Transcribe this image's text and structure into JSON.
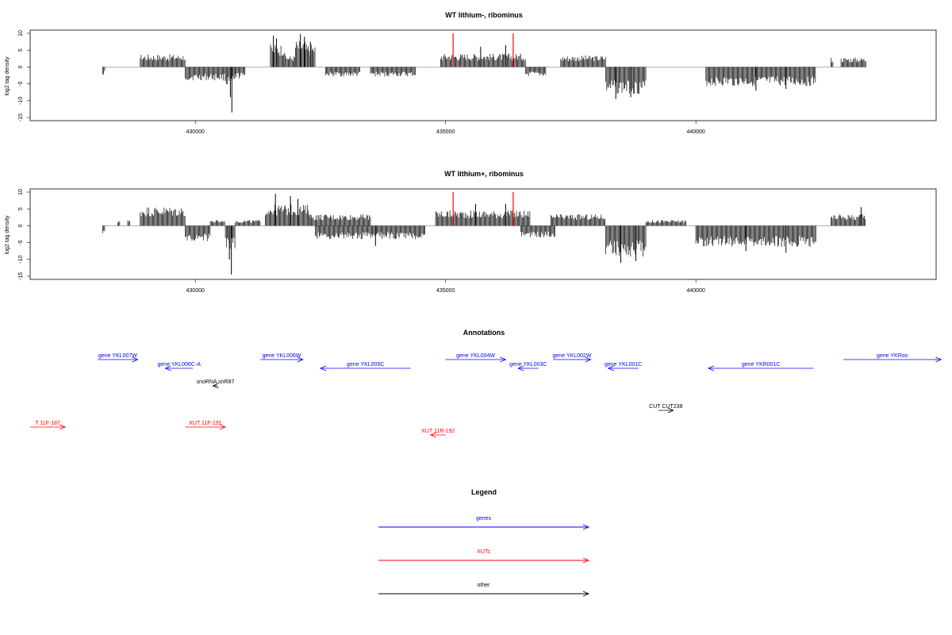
{
  "chart_data": [
    {
      "type": "bar",
      "title": "WT lithium-, ribominus",
      "ylabel": "log2 tag density",
      "xlabel": "",
      "xlim": [
        426700,
        444800
      ],
      "ylim": [
        -15,
        10
      ],
      "xticks": [
        "430000",
        "435000",
        "440000"
      ],
      "yticks": [
        "10",
        "5",
        "0",
        "-5",
        "-10",
        "-15"
      ],
      "marker_lines": [
        435150,
        436350
      ],
      "marker_color": "#ff0000",
      "bar_color": "#000000",
      "baseline_color": "#999999",
      "segments": [
        {
          "start": 428150,
          "end": 428200,
          "value": -2,
          "spikes": []
        },
        {
          "start": 428900,
          "end": 429800,
          "value": 3.3,
          "spikes": []
        },
        {
          "start": 429800,
          "end": 430600,
          "value": -3.5,
          "spikes": []
        },
        {
          "start": 430600,
          "end": 430800,
          "value": -5,
          "spikes": [
            [
              430730,
              -13.5
            ],
            [
              430700,
              -9
            ]
          ]
        },
        {
          "start": 430800,
          "end": 431000,
          "value": -3,
          "spikes": []
        },
        {
          "start": 431500,
          "end": 431800,
          "value": 6,
          "spikes": [
            [
              431560,
              9.3
            ],
            [
              431620,
              8.5
            ]
          ]
        },
        {
          "start": 431800,
          "end": 432000,
          "value": 3,
          "spikes": []
        },
        {
          "start": 432000,
          "end": 432200,
          "value": 7,
          "spikes": [
            [
              432100,
              9.8
            ],
            [
              432180,
              9
            ]
          ]
        },
        {
          "start": 432200,
          "end": 432400,
          "value": 6,
          "spikes": [
            [
              432300,
              7.5
            ]
          ]
        },
        {
          "start": 432600,
          "end": 433300,
          "value": -2.5,
          "spikes": []
        },
        {
          "start": 433500,
          "end": 434400,
          "value": -2.5,
          "spikes": []
        },
        {
          "start": 434900,
          "end": 436600,
          "value": 3.5,
          "spikes": [
            [
              435700,
              6
            ],
            [
              436200,
              6.5
            ]
          ]
        },
        {
          "start": 436600,
          "end": 437000,
          "value": -2.5,
          "spikes": []
        },
        {
          "start": 437300,
          "end": 438200,
          "value": 3,
          "spikes": []
        },
        {
          "start": 438200,
          "end": 439000,
          "value": -7,
          "spikes": [
            [
              438400,
              -9.5
            ],
            [
              438700,
              -9
            ]
          ]
        },
        {
          "start": 440200,
          "end": 442400,
          "value": -5,
          "spikes": [
            [
              441200,
              -7
            ],
            [
              441800,
              -6.5
            ]
          ]
        },
        {
          "start": 442700,
          "end": 442750,
          "value": 2.5,
          "spikes": []
        },
        {
          "start": 442900,
          "end": 443400,
          "value": 2.5,
          "spikes": []
        }
      ]
    },
    {
      "type": "bar",
      "title": "WT lithium+, ribominus",
      "ylabel": "log2 tag density",
      "xlabel": "",
      "xlim": [
        426700,
        444800
      ],
      "ylim": [
        -15,
        10
      ],
      "xticks": [
        "430000",
        "435000",
        "440000"
      ],
      "yticks": [
        "10",
        "5",
        "0",
        "-5",
        "-10",
        "-15"
      ],
      "marker_lines": [
        435150,
        436350
      ],
      "marker_color": "#ff0000",
      "bar_color": "#000000",
      "baseline_color": "#999999",
      "segments": [
        {
          "start": 428150,
          "end": 428200,
          "value": -2,
          "spikes": []
        },
        {
          "start": 428450,
          "end": 428500,
          "value": 1.5,
          "spikes": []
        },
        {
          "start": 428650,
          "end": 428700,
          "value": 1.5,
          "spikes": []
        },
        {
          "start": 428900,
          "end": 429800,
          "value": 5,
          "spikes": []
        },
        {
          "start": 429800,
          "end": 430300,
          "value": -4,
          "spikes": []
        },
        {
          "start": 430300,
          "end": 430600,
          "value": 1.5,
          "spikes": []
        },
        {
          "start": 430600,
          "end": 430800,
          "value": -6,
          "spikes": [
            [
              430720,
              -14.5
            ],
            [
              430680,
              -10
            ]
          ]
        },
        {
          "start": 430800,
          "end": 431300,
          "value": 1.5,
          "spikes": []
        },
        {
          "start": 431400,
          "end": 432300,
          "value": 5.5,
          "spikes": [
            [
              431600,
              9.5
            ],
            [
              431900,
              8.8
            ],
            [
              432050,
              8
            ]
          ]
        },
        {
          "start": 432300,
          "end": 433500,
          "value": 3,
          "spikes": []
        },
        {
          "start": 432400,
          "end": 434600,
          "value": -3.5,
          "spikes": [
            [
              433600,
              -6
            ]
          ]
        },
        {
          "start": 434800,
          "end": 436700,
          "value": 4,
          "spikes": [
            [
              435600,
              6.5
            ],
            [
              436200,
              6.5
            ]
          ]
        },
        {
          "start": 436500,
          "end": 437200,
          "value": -3,
          "spikes": []
        },
        {
          "start": 437100,
          "end": 438200,
          "value": 3,
          "spikes": []
        },
        {
          "start": 438200,
          "end": 439000,
          "value": -8,
          "spikes": [
            [
              438500,
              -11
            ],
            [
              438800,
              -10.5
            ]
          ]
        },
        {
          "start": 439000,
          "end": 439800,
          "value": 1.5,
          "spikes": []
        },
        {
          "start": 440000,
          "end": 442400,
          "value": -5.5,
          "spikes": [
            [
              441000,
              -7.5
            ],
            [
              441800,
              -8
            ]
          ]
        },
        {
          "start": 442700,
          "end": 443400,
          "value": 3,
          "spikes": [
            [
              443300,
              5.5
            ]
          ]
        }
      ]
    }
  ],
  "annotations": {
    "title": "Annotations",
    "features": [
      {
        "label": "gene YKL007W",
        "color": "#0000ff",
        "row": 0,
        "start": 428050,
        "end": 428850,
        "strand": "+"
      },
      {
        "label": "gene YKL006C-A",
        "color": "#0000ff",
        "row": 1,
        "start": 429400,
        "end": 429950,
        "strand": "-"
      },
      {
        "label": "gene YKL006W",
        "color": "#0000ff",
        "row": 0,
        "start": 431300,
        "end": 432150,
        "strand": "+"
      },
      {
        "label": "gene YKL005C",
        "color": "#0000ff",
        "row": 1,
        "start": 432500,
        "end": 434300,
        "strand": "-"
      },
      {
        "label": "gene YKL004W",
        "color": "#0000ff",
        "row": 0,
        "start": 435000,
        "end": 436200,
        "strand": "+"
      },
      {
        "label": "gene YKL003C",
        "color": "#0000ff",
        "row": 1,
        "start": 436450,
        "end": 436850,
        "strand": "-"
      },
      {
        "label": "gene YKL002W",
        "color": "#0000ff",
        "row": 0,
        "start": 437150,
        "end": 437900,
        "strand": "+"
      },
      {
        "label": "gene YKL001C",
        "color": "#0000ff",
        "row": 1,
        "start": 438250,
        "end": 438850,
        "strand": "-"
      },
      {
        "label": "gene YKR001C",
        "color": "#0000ff",
        "row": 1,
        "start": 440250,
        "end": 442350,
        "strand": "-"
      },
      {
        "label": "gene YKRoo",
        "color": "#0000ff",
        "row": 0,
        "start": 442950,
        "end": 444900,
        "strand": "+"
      },
      {
        "label": "snoRNA snR87",
        "color": "#000000",
        "row": 2,
        "start": 430350,
        "end": 430450,
        "strand": "-"
      },
      {
        "label": "CUT CUT238",
        "color": "#000000",
        "row": 3,
        "start": 439250,
        "end": 439550,
        "strand": "+"
      },
      {
        "label": "T 11F-187",
        "color": "#ff0000",
        "row": 4,
        "start": 426700,
        "end": 427400,
        "strand": "+"
      },
      {
        "label": "XUT 11F-191",
        "color": "#ff0000",
        "row": 4,
        "start": 429800,
        "end": 430600,
        "strand": "+"
      },
      {
        "label": "XUT 11R-192",
        "color": "#ff0000",
        "row": 5,
        "start": 434700,
        "end": 435000,
        "strand": "-"
      }
    ]
  },
  "legend": {
    "title": "Legend",
    "items": [
      {
        "label": "genes",
        "color": "#0000ff"
      },
      {
        "label": "XUTs",
        "color": "#ff0000"
      },
      {
        "label": "other",
        "color": "#000000"
      }
    ]
  }
}
